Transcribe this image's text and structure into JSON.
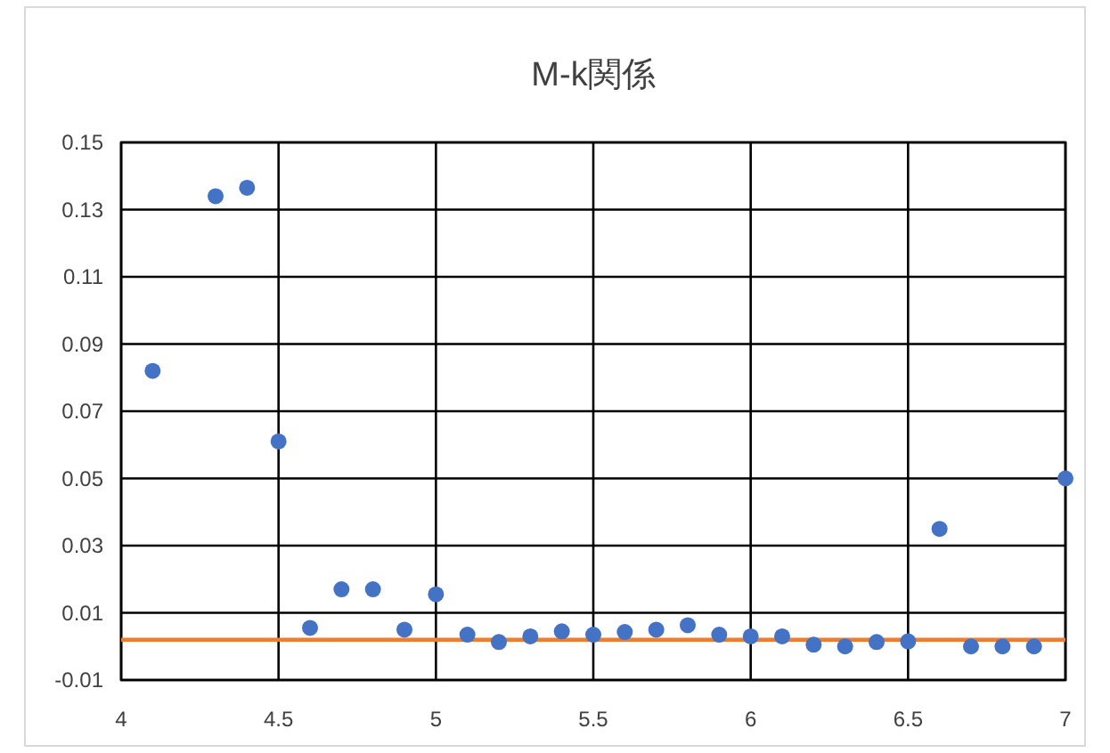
{
  "chart_data": {
    "type": "scatter",
    "title": "M-k関係",
    "x": [
      4.1,
      4.3,
      4.4,
      4.5,
      4.6,
      4.7,
      4.8,
      4.9,
      5.0,
      5.1,
      5.2,
      5.3,
      5.4,
      5.5,
      5.6,
      5.7,
      5.8,
      5.9,
      6.0,
      6.1,
      6.2,
      6.3,
      6.4,
      6.5,
      6.6,
      6.7,
      6.8,
      6.9,
      7.0
    ],
    "series": [
      {
        "color": "#4472c4",
        "values": [
          0.082,
          0.134,
          0.1365,
          0.061,
          0.0055,
          0.017,
          0.017,
          0.005,
          0.0155,
          0.0035,
          0.0013,
          0.003,
          0.0045,
          0.0035,
          0.0043,
          0.005,
          0.0063,
          0.0035,
          0.003,
          0.003,
          0.0005,
          0.0,
          0.0013,
          0.0015,
          0.035,
          0.0,
          0.0,
          0.0,
          0.05
        ]
      }
    ],
    "ref_lines": [
      {
        "axis": "y",
        "value": 0.002,
        "color": "#ed7d31"
      }
    ],
    "xlim": [
      4,
      7
    ],
    "ylim": [
      -0.01,
      0.15
    ],
    "xticks": [
      4,
      4.5,
      5,
      5.5,
      6,
      6.5,
      7
    ],
    "yticks": [
      -0.01,
      0.01,
      0.03,
      0.05,
      0.07,
      0.09,
      0.11,
      0.13,
      0.15
    ],
    "grid": true,
    "marker": "circle"
  }
}
